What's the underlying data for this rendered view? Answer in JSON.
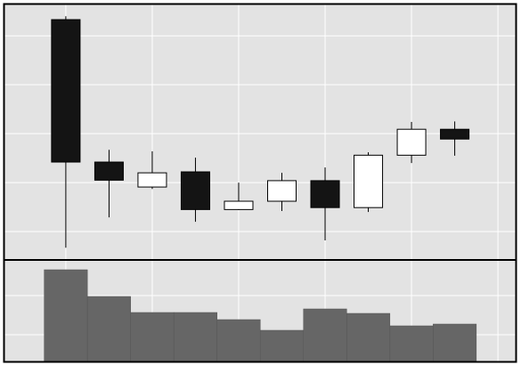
{
  "chart_data": [
    {
      "type": "candlestick",
      "x": [
        0,
        1,
        2,
        3,
        4,
        5,
        6,
        7,
        8,
        9
      ],
      "open": [
        53.3,
        24.2,
        19.1,
        22.2,
        14.5,
        16.2,
        20.4,
        14.9,
        25.6,
        30.9
      ],
      "high": [
        54.0,
        26.7,
        26.4,
        25.1,
        20.0,
        22.0,
        23.1,
        26.2,
        32.4,
        32.5
      ],
      "low": [
        6.7,
        12.9,
        18.7,
        12.0,
        14.4,
        14.2,
        8.2,
        14.0,
        24.0,
        25.5
      ],
      "close": [
        24.2,
        20.5,
        22.0,
        14.5,
        16.2,
        20.4,
        14.9,
        25.6,
        30.9,
        28.9
      ],
      "up_color": "#ffffff",
      "down_color": "#141414",
      "xlim": [
        -1.42,
        10.41
      ],
      "xticks": [
        0,
        2,
        4,
        6,
        8,
        10
      ],
      "ylim": [
        4.2,
        56.4
      ],
      "yticks": [
        10,
        20,
        30,
        40,
        50
      ],
      "grid": true
    },
    {
      "type": "bar",
      "x": [
        0,
        1,
        2,
        3,
        4,
        5,
        6,
        7,
        8,
        9
      ],
      "values": [
        103,
        73,
        55,
        55,
        47,
        35,
        59,
        54,
        40,
        42
      ],
      "color": "#666666",
      "xlim": [
        -1.42,
        10.41
      ],
      "xticks": [
        0,
        2,
        4,
        6,
        8,
        10
      ],
      "ylim": [
        0,
        114
      ],
      "yticks": [
        30,
        74
      ],
      "grid": true
    }
  ]
}
